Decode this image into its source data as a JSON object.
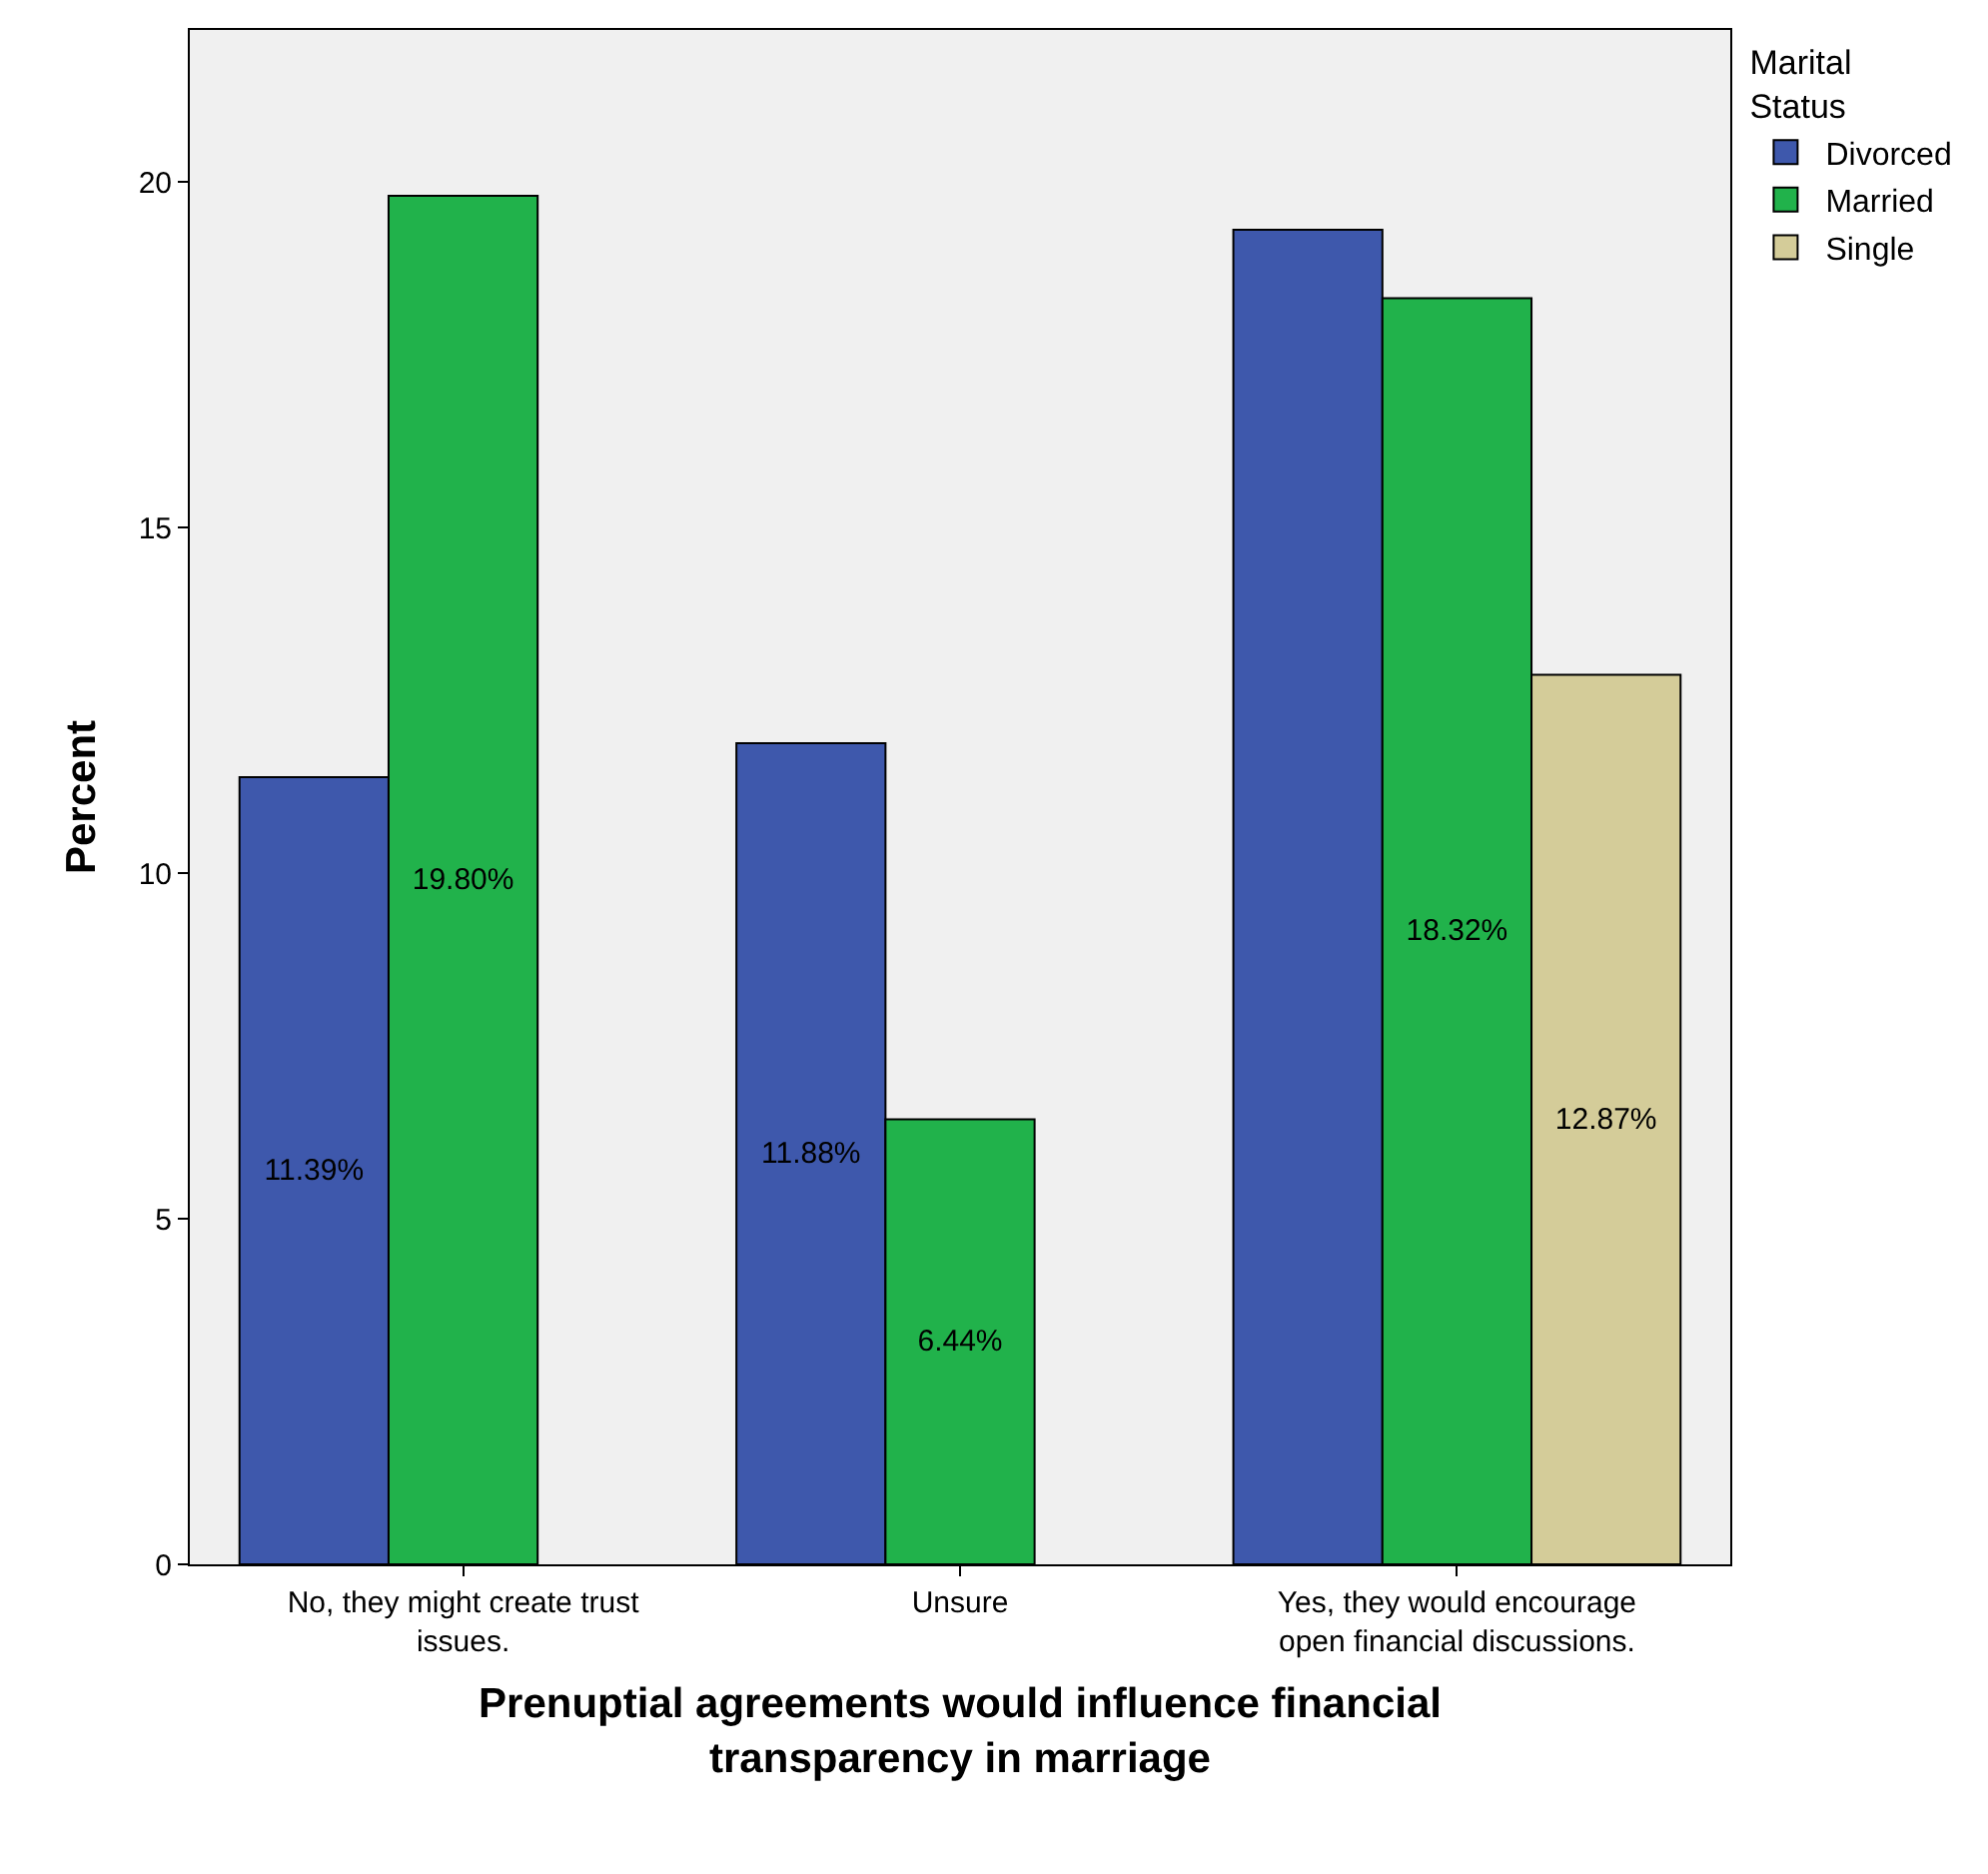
{
  "chart_data": {
    "type": "bar",
    "xlabel": "Prenuptial agreements would influence financial transparency in marriage",
    "ylabel": "Percent",
    "legend_title": "Marital Status",
    "legend": "right",
    "categories": [
      "No, they might create trust issues.",
      "Unsure",
      "Yes, they would encourage open financial discussions."
    ],
    "series": [
      {
        "name": "Divorced",
        "color": "#3e58ac",
        "values": [
          11.39,
          11.88,
          19.31
        ],
        "value_labels": [
          "11.39%",
          "11.88%",
          null
        ]
      },
      {
        "name": "Married",
        "color": "#21b24b",
        "values": [
          19.8,
          6.44,
          18.32
        ],
        "value_labels": [
          "19.80%",
          "6.44%",
          "18.32%"
        ]
      },
      {
        "name": "Single",
        "color": "#d4cc99",
        "values": [
          null,
          null,
          12.87
        ],
        "value_labels": [
          null,
          null,
          "12.87%"
        ]
      }
    ],
    "ylim": [
      0,
      22.2
    ],
    "yticks": [
      0,
      5,
      10,
      15,
      20
    ],
    "grid": false
  }
}
